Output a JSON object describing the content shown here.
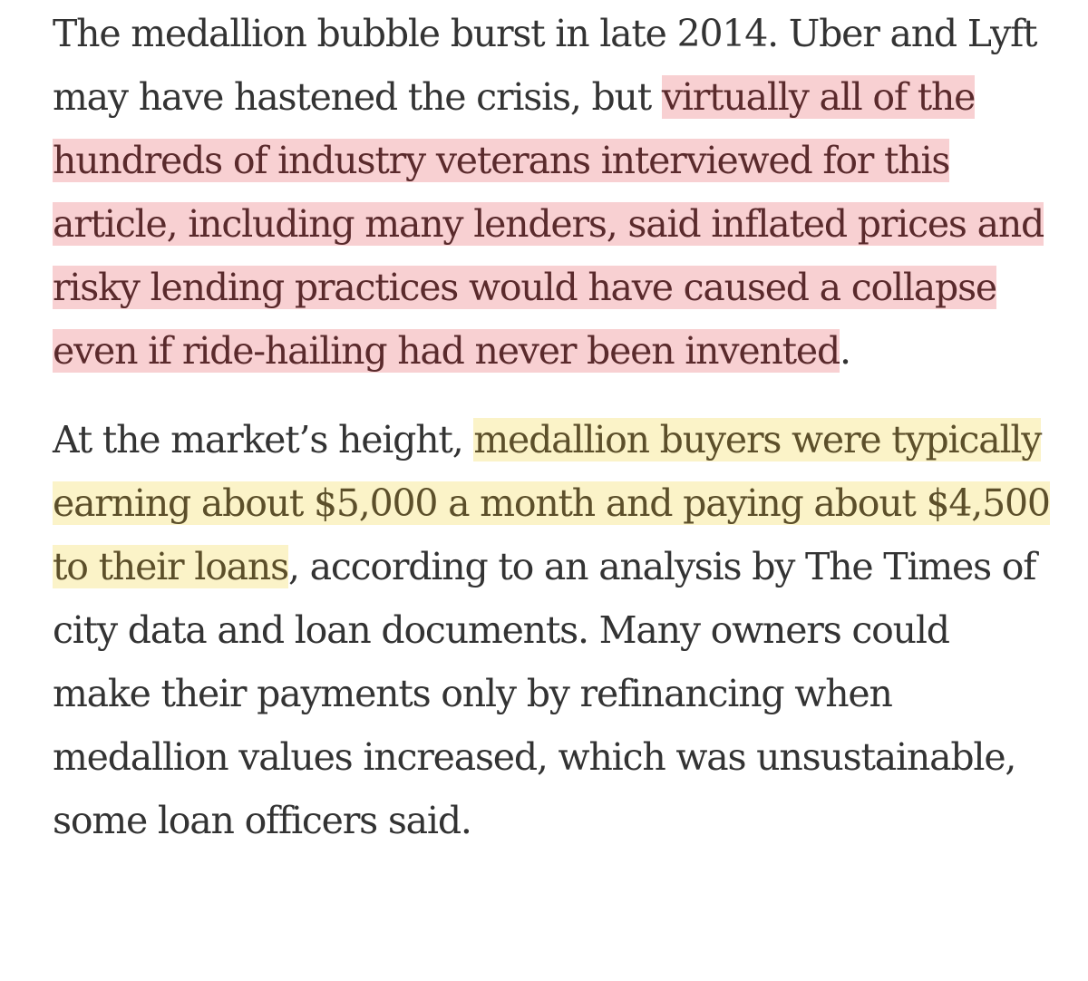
{
  "highlight_colors": {
    "red": "#f8d0d2",
    "yellow": "#fbf3c8"
  },
  "paragraphs": [
    {
      "before": "The medallion bubble burst in late 2014. Uber and Lyft may have hastened the crisis, but ",
      "highlight": "virtually all of the hundreds of industry veterans interviewed for this article, including many lenders, said inflated prices and risky lending practices would have caused a collapse even if ride-hailing had never been invented",
      "after": "."
    },
    {
      "before": "At the market’s height, ",
      "highlight": "medallion buyers were typically earning about $5,000 a month and paying about $4,500 to their loans",
      "after": ", according to an analysis by The Times of city data and loan documents. Many owners could make their payments only by refinancing when medallion values increased, which was unsustainable, some loan officers said."
    }
  ]
}
